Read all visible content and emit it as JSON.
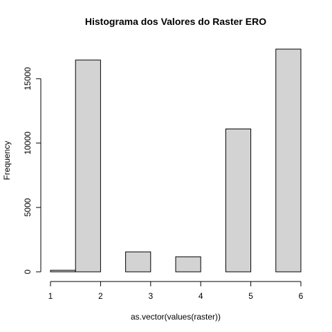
{
  "chart_data": {
    "type": "bar",
    "title": "Histograma dos Valores do Raster ERO",
    "xlabel": "as.vector(values(raster))",
    "ylabel": "Frequency",
    "bins": [
      {
        "x0": 1.0,
        "x1": 1.5,
        "value": 120
      },
      {
        "x0": 1.5,
        "x1": 2.0,
        "value": 16450
      },
      {
        "x0": 2.0,
        "x1": 2.5,
        "value": 0
      },
      {
        "x0": 2.5,
        "x1": 3.0,
        "value": 1550
      },
      {
        "x0": 3.0,
        "x1": 3.5,
        "value": 0
      },
      {
        "x0": 3.5,
        "x1": 4.0,
        "value": 1170
      },
      {
        "x0": 4.0,
        "x1": 4.5,
        "value": 0
      },
      {
        "x0": 4.5,
        "x1": 5.0,
        "value": 11100
      },
      {
        "x0": 5.0,
        "x1": 5.5,
        "value": 0
      },
      {
        "x0": 5.5,
        "x1": 6.0,
        "value": 17300
      }
    ],
    "xlim": [
      1,
      6
    ],
    "ylim": [
      0,
      17300
    ],
    "xticks": [
      "1",
      "2",
      "3",
      "4",
      "5",
      "6"
    ],
    "yticks": [
      "0",
      "5000",
      "10000",
      "15000"
    ],
    "grid": false,
    "colors": {
      "bar_fill": "#d3d3d3",
      "bar_stroke": "#000000"
    }
  }
}
